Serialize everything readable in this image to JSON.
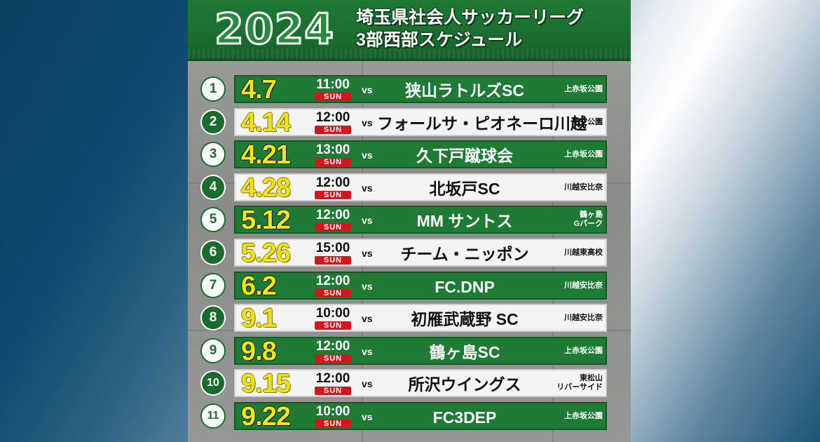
{
  "header": {
    "year": "2024",
    "title_line1": "埼玉県社会人サッカーリーグ",
    "title_line2": "3部西部スケジュール"
  },
  "matches": [
    {
      "no": "1",
      "date": "4.7",
      "time": "11:00",
      "day": "SUN",
      "vs": "vs",
      "opponent": "狭山ラトルズSC",
      "venue": "上赤坂公園"
    },
    {
      "no": "2",
      "date": "4.14",
      "time": "12:00",
      "day": "SUN",
      "vs": "vs",
      "opponent": "フォールサ・ピオネーロ川越",
      "venue": "航空公園"
    },
    {
      "no": "3",
      "date": "4.21",
      "time": "13:00",
      "day": "SUN",
      "vs": "vs",
      "opponent": "久下戸蹴球会",
      "venue": "上赤坂公園"
    },
    {
      "no": "4",
      "date": "4.28",
      "time": "12:00",
      "day": "SUN",
      "vs": "vs",
      "opponent": "北坂戸SC",
      "venue": "川越安比奈"
    },
    {
      "no": "5",
      "date": "5.12",
      "time": "12:00",
      "day": "SUN",
      "vs": "vs",
      "opponent": "MM サントス",
      "venue": "鶴ヶ島\nGパーク"
    },
    {
      "no": "6",
      "date": "5.26",
      "time": "15:00",
      "day": "SUN",
      "vs": "vs",
      "opponent": "チーム・ニッポン",
      "venue": "川越東高校"
    },
    {
      "no": "7",
      "date": "6.2",
      "time": "12:00",
      "day": "SUN",
      "vs": "vs",
      "opponent": "FC.DNP",
      "venue": "川越安比奈"
    },
    {
      "no": "8",
      "date": "9.1",
      "time": "10:00",
      "day": "SUN",
      "vs": "vs",
      "opponent": "初雁武蔵野 SC",
      "venue": "川越安比奈"
    },
    {
      "no": "9",
      "date": "9.8",
      "time": "12:00",
      "day": "SUN",
      "vs": "vs",
      "opponent": "鶴ヶ島SC",
      "venue": "上赤坂公園"
    },
    {
      "no": "10",
      "date": "9.15",
      "time": "12:00",
      "day": "SUN",
      "vs": "vs",
      "opponent": "所沢ウイングス",
      "venue": "東松山\nリバーサイド"
    },
    {
      "no": "11",
      "date": "9.22",
      "time": "10:00",
      "day": "SUN",
      "vs": "vs",
      "opponent": "FC3DEP",
      "venue": "上赤坂公園"
    }
  ],
  "colors": {
    "green": "#1f7a35",
    "yellow": "#f5e61a",
    "sun_badge": "#d4171d",
    "white_bar": "#f4f4f4"
  }
}
